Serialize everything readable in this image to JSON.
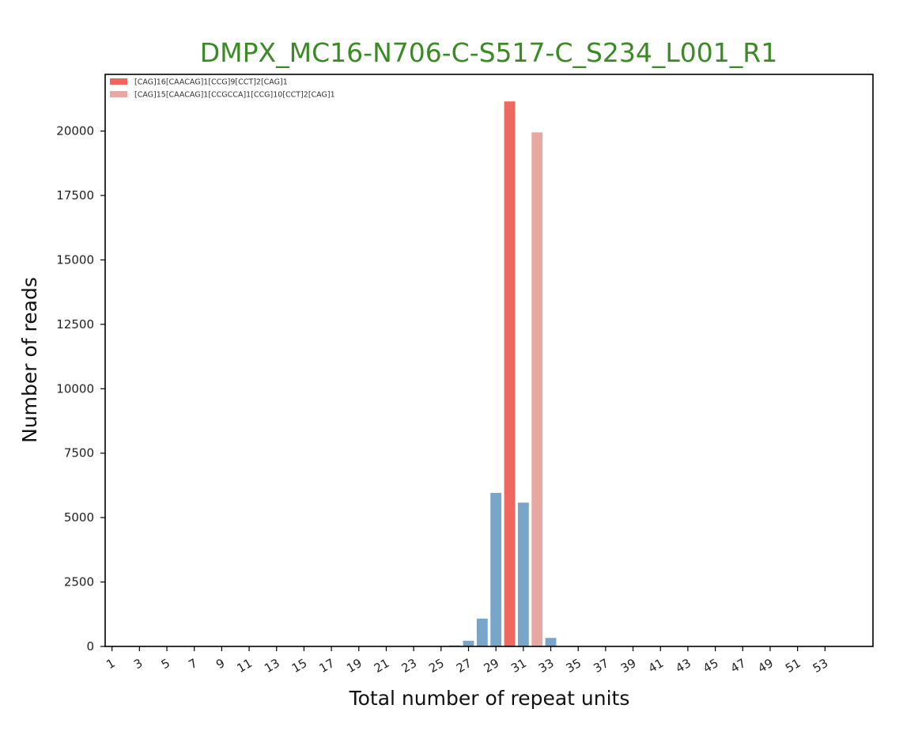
{
  "chart_data": {
    "type": "bar",
    "title": "DMPX_MC16-N706-C-S517-C_S234_L001_R1",
    "xlabel": "Total number of repeat units",
    "ylabel": "Number of reads",
    "x_ticks": [
      "1",
      "3",
      "5",
      "7",
      "9",
      "11",
      "13",
      "15",
      "17",
      "19",
      "21",
      "23",
      "25",
      "27",
      "29",
      "31",
      "33",
      "35",
      "37",
      "39",
      "41",
      "43",
      "45",
      "47",
      "49",
      "51",
      "53"
    ],
    "y_ticks": [
      0,
      2500,
      5000,
      7500,
      10000,
      12500,
      15000,
      17500,
      20000
    ],
    "ylim": [
      0,
      22200
    ],
    "xlim": [
      0.5,
      56.5
    ],
    "grid": false,
    "legend_position": "top-left",
    "series": [
      {
        "name": "[CAG]16[CAACAG]1[CCG]9[CCT]2[CAG]1",
        "color": "#ee6860",
        "points": [
          {
            "x": 30,
            "y": 21150
          }
        ]
      },
      {
        "name": "[CAG]15[CAACAG]1[CCGCCA]1[CCG]10[CCT]2[CAG]1",
        "color": "#e8a7a0",
        "points": [
          {
            "x": 32,
            "y": 19950
          }
        ]
      },
      {
        "color": "#78a6cb",
        "points": [
          {
            "x": 26,
            "y": 40
          },
          {
            "x": 27,
            "y": 220
          },
          {
            "x": 28,
            "y": 1080
          },
          {
            "x": 29,
            "y": 5960
          },
          {
            "x": 31,
            "y": 5580
          },
          {
            "x": 33,
            "y": 330
          }
        ]
      }
    ]
  },
  "colors": {
    "title": "#3a8a25",
    "axis": "#000000"
  }
}
